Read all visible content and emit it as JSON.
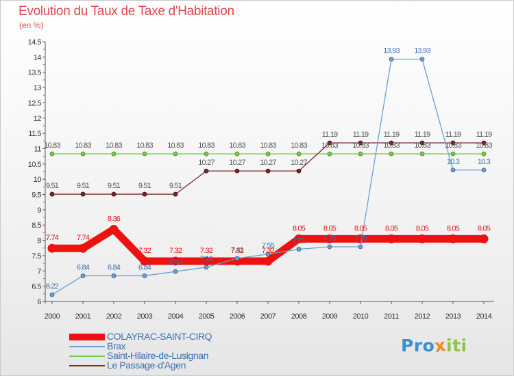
{
  "title": "Evolution du Taux de Taxe d'Habitation",
  "subtitle": "(en %)",
  "logo": {
    "text": "Proxiti",
    "letters": [
      "P",
      "r",
      "o",
      "x",
      "i",
      "t",
      "i"
    ],
    "colors": [
      "#3a8fd4",
      "#3a8fd4",
      "#3a8fd4",
      "#f08a1e",
      "#8cc63f",
      "#8cc63f",
      "#8cc63f"
    ]
  },
  "colors": {
    "title": "#e0484c",
    "axis": "#555555",
    "tick_marker": "#e0484c"
  },
  "chart_data": {
    "type": "line",
    "x": [
      "2000",
      "2001",
      "2002",
      "2003",
      "2004",
      "2005",
      "2006",
      "2007",
      "2008",
      "2009",
      "2010",
      "2011",
      "2012",
      "2013",
      "2014"
    ],
    "ylim": [
      6,
      14.5
    ],
    "yticks": [
      "6",
      "6.5",
      "7",
      "7.5",
      "8",
      "8.5",
      "9",
      "9.5",
      "10",
      "10.5",
      "11",
      "11.5",
      "12",
      "12.5",
      "13",
      "13.5",
      "14",
      "14.5"
    ],
    "grid": false,
    "legend_position": "bottom-left",
    "series": [
      {
        "name": "COLAYRAC-SAINT-CIRQ",
        "color": "#ee1111",
        "label_color": "#ee1111",
        "thick": true,
        "values": [
          7.74,
          7.74,
          8.36,
          7.32,
          7.32,
          7.32,
          7.32,
          7.32,
          8.05,
          8.05,
          8.05,
          8.05,
          8.05,
          8.05,
          8.05
        ],
        "labels": [
          "7.74",
          "7.74",
          "8.36",
          "7.32",
          "7.32",
          "7.32",
          "7.32",
          "7.32",
          "8.05",
          "8.05",
          "8.05",
          "8.05",
          "8.05",
          "8.05",
          "8.05"
        ]
      },
      {
        "name": "Brax",
        "color": "#6a9fd2",
        "label_color": "#3a6fb0",
        "thick": false,
        "values": [
          6.22,
          6.84,
          6.84,
          6.84,
          6.98,
          7.12,
          7.41,
          7.55,
          7.71,
          7.79,
          7.79,
          13.93,
          13.93,
          10.3,
          10.3
        ],
        "labels": [
          "6.22",
          "6.84",
          "6.84",
          "6.84",
          "6.98",
          "7.12",
          "7.41",
          "7.55",
          "7.71",
          "7.79",
          "7.79",
          "13.93",
          "13.93",
          "10.3",
          "10.3"
        ]
      },
      {
        "name": "Saint-Hilaire-de-Lusignan",
        "color": "#7ec850",
        "label_color": "#555555",
        "thick": false,
        "values": [
          10.83,
          10.83,
          10.83,
          10.83,
          10.83,
          10.83,
          10.83,
          10.83,
          10.83,
          10.83,
          10.83,
          10.83,
          10.83,
          10.83,
          10.83
        ],
        "labels": [
          "10.83",
          "10.83",
          "10.83",
          "10.83",
          "10.83",
          "10.83",
          "10.83",
          "10.83",
          "10.83",
          "10.83",
          "10.83",
          "10.83",
          "10.83",
          "10.83",
          "10.83"
        ]
      },
      {
        "name": "Le Passage-d'Agen",
        "color": "#7a2a2a",
        "label_color": "#555555",
        "thick": false,
        "values": [
          9.51,
          9.51,
          9.51,
          9.51,
          9.51,
          10.27,
          10.27,
          10.27,
          10.27,
          11.19,
          11.19,
          11.19,
          11.19,
          11.19,
          11.19
        ],
        "labels": [
          "9.51",
          "9.51",
          "9.51",
          "9.51",
          "9.51",
          "10.27",
          "10.27",
          "10.27",
          "10.27",
          "11.19",
          "11.19",
          "11.19",
          "11.19",
          "11.19",
          "11.19"
        ]
      }
    ]
  }
}
